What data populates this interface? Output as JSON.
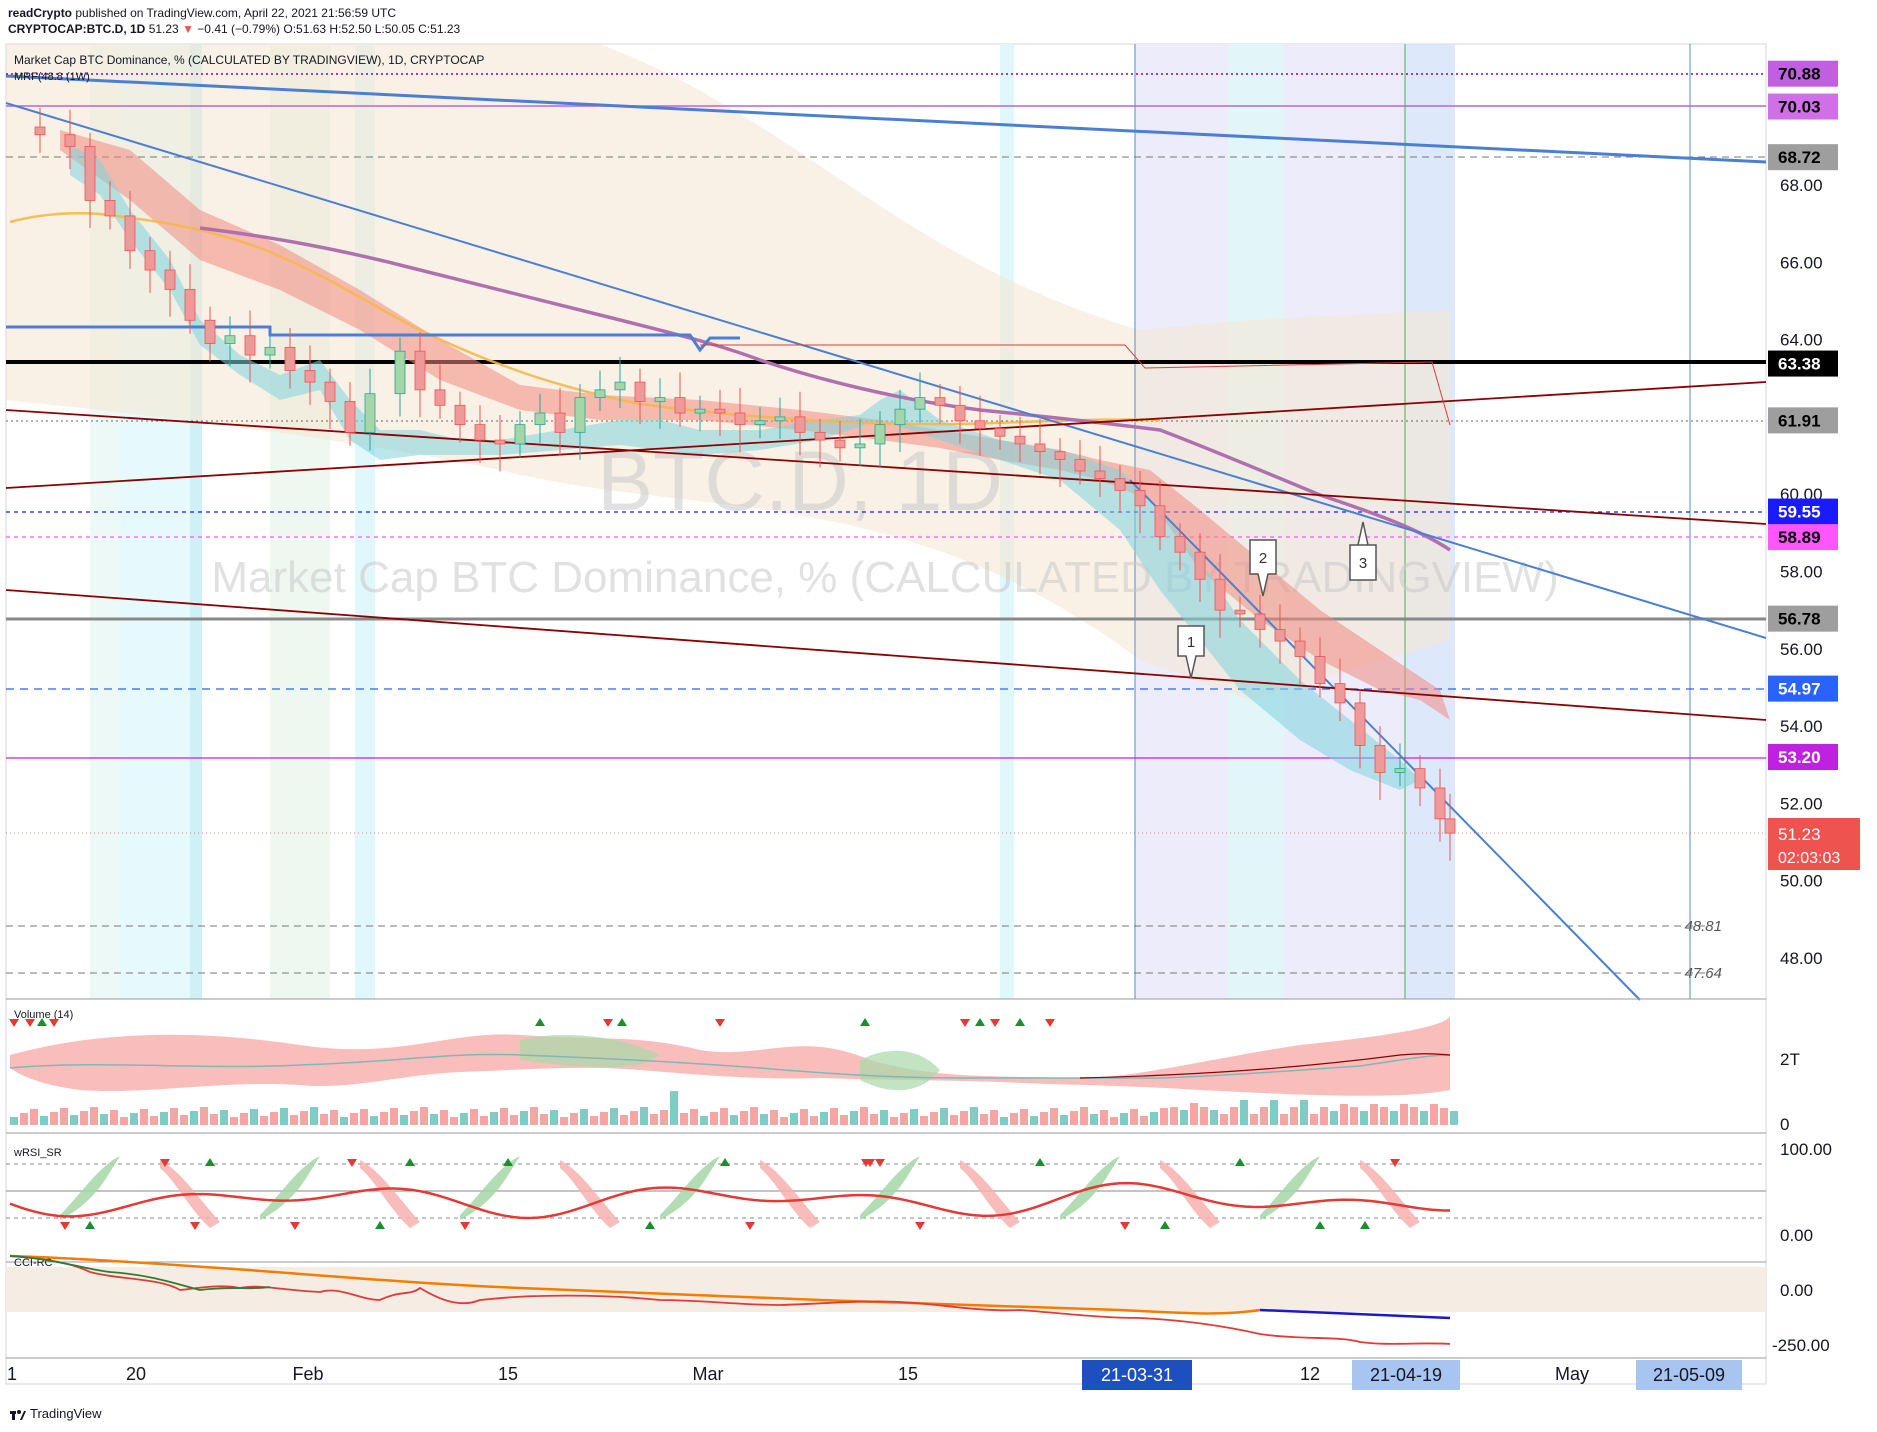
{
  "header": {
    "line1_user": "readCrypto",
    "line1_text": "published on TradingView.com, April 22, 2021 21:56:59 UTC",
    "symbol": "CRYPTOCAP:BTC.D, 1D",
    "last": "51.23",
    "change": "−0.41 (−0.79%)",
    "ohlc": "O:51.63 H:52.50 L:50.05 C:51.23"
  },
  "legend": {
    "title": "Market Cap BTC Dominance, % (CALCULATED BY TRADINGVIEW), 1D, CRYPTOCAP",
    "indicator": "MRF(48.8 (1W)"
  },
  "watermark": {
    "symbol": "BTC.D, 1D",
    "name": "Market Cap BTC Dominance, % (CALCULATED BY TRADINGVIEW)"
  },
  "colors": {
    "up": "#26a69a",
    "down": "#ef5350",
    "trend_blue": "#4a7fd4",
    "support_dark": "#8b0000",
    "magenta_line": "#c060e0",
    "purple_ma": "#b070b0",
    "ribbon": "#f4a09a",
    "cyan_ribbon": "#8ad8e0"
  },
  "price_axis": {
    "ticks": [
      "68.00",
      "66.00",
      "64.00",
      "60.00",
      "58.00",
      "56.00",
      "54.00",
      "52.00",
      "50.00",
      "48.00"
    ],
    "markers": [
      {
        "value": "70.88",
        "bg": "#c060e0",
        "fg": "#000000"
      },
      {
        "value": "70.03",
        "bg": "#d070e8",
        "fg": "#000000"
      },
      {
        "value": "68.72",
        "bg": "#9e9e9e",
        "fg": "#000000"
      },
      {
        "value": "63.38",
        "bg": "#000000",
        "fg": "#ffffff"
      },
      {
        "value": "61.91",
        "bg": "#9e9e9e",
        "fg": "#000000"
      },
      {
        "value": "59.55",
        "bg": "#1a1aff",
        "fg": "#ffffff"
      },
      {
        "value": "58.89",
        "bg": "#ff55ff",
        "fg": "#000000"
      },
      {
        "value": "56.78",
        "bg": "#9e9e9e",
        "fg": "#000000"
      },
      {
        "value": "54.97",
        "bg": "#2962ff",
        "fg": "#ffffff"
      },
      {
        "value": "53.20",
        "bg": "#c020e0",
        "fg": "#ffffff"
      }
    ],
    "last_price": "51.23",
    "countdown": "02:03:03",
    "dashed_labels": [
      "48.81",
      "47.64"
    ]
  },
  "waves": [
    "1",
    "2",
    "3"
  ],
  "panes": {
    "volume": {
      "label": "Volume (14)",
      "ticks": [
        "2T",
        "0"
      ]
    },
    "rsi": {
      "label": "wRSI_SR",
      "ticks": [
        "100.00",
        "0.00"
      ]
    },
    "cci": {
      "label": "CCI-RC",
      "ticks": [
        "0.00",
        "-250.00"
      ]
    }
  },
  "time_axis": {
    "labels": [
      "1",
      "20",
      "Feb",
      "15",
      "Mar",
      "15",
      "12",
      "May"
    ],
    "highlights": [
      "21-03-31",
      "21-04-19",
      "21-05-09"
    ]
  },
  "footer": {
    "brand": "TradingView"
  },
  "chart_data": {
    "type": "candlestick",
    "title": "Market Cap BTC Dominance, % (CALCULATED BY TRADINGVIEW), 1D, CRYPTOCAP",
    "xlabel": "",
    "ylabel": "",
    "x": [
      "2021-01-01",
      "2021-01-20",
      "2021-02-01",
      "2021-02-15",
      "2021-03-01",
      "2021-03-15",
      "2021-03-31",
      "2021-04-12",
      "2021-04-19",
      "2021-04-22"
    ],
    "series": [
      {
        "values": [
          69.6,
          66.5,
          64.0,
          61.0,
          61.5,
          62.5,
          60.0,
          56.0,
          52.8,
          51.23
        ]
      }
    ],
    "ylim": [
      47,
      71.5
    ],
    "horizontal_levels": [
      70.88,
      70.03,
      68.72,
      63.38,
      61.91,
      59.55,
      58.89,
      56.78,
      54.97,
      53.2,
      48.81,
      47.64
    ],
    "last": {
      "open": 51.63,
      "high": 52.5,
      "low": 50.05,
      "close": 51.23,
      "change": -0.41,
      "change_pct": -0.79
    },
    "grid": false
  }
}
